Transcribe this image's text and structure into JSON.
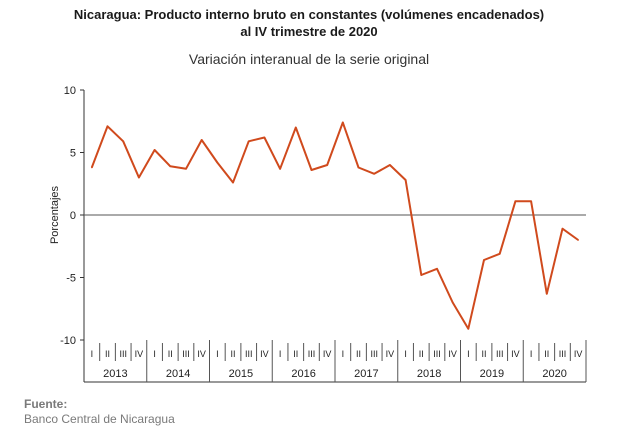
{
  "chart_data": {
    "type": "line",
    "title_line1": "Nicaragua: Producto interno bruto en constantes (volúmenes encadenados)",
    "title_line2": "al IV trimestre de 2020",
    "subtitle": "Variación interanual de la serie original",
    "ylabel": "Porcentajes",
    "xlabel": "",
    "ylim": [
      -10,
      10
    ],
    "yticks": [
      10,
      5,
      0,
      -5,
      -10
    ],
    "grid": false,
    "legend": "none",
    "line_color": "#d04a1d",
    "years": [
      "2013",
      "2014",
      "2015",
      "2016",
      "2017",
      "2018",
      "2019",
      "2020"
    ],
    "quarter_labels": [
      "I",
      "II",
      "III",
      "IV"
    ],
    "series": [
      {
        "values": [
          3.8,
          7.1,
          5.9,
          3.0,
          5.2,
          3.9,
          3.7,
          6.0,
          4.2,
          2.6,
          5.9,
          6.2,
          3.7,
          7.0,
          3.6,
          4.0,
          7.4,
          3.8,
          3.3,
          4.0,
          2.8,
          -4.8,
          -4.3,
          -7.0,
          -9.1,
          -3.6,
          -3.1,
          1.1,
          1.1,
          -6.3,
          -1.1,
          -2.0
        ]
      }
    ]
  },
  "source": {
    "label": "Fuente:",
    "value": "Banco Central de Nicaragua"
  }
}
